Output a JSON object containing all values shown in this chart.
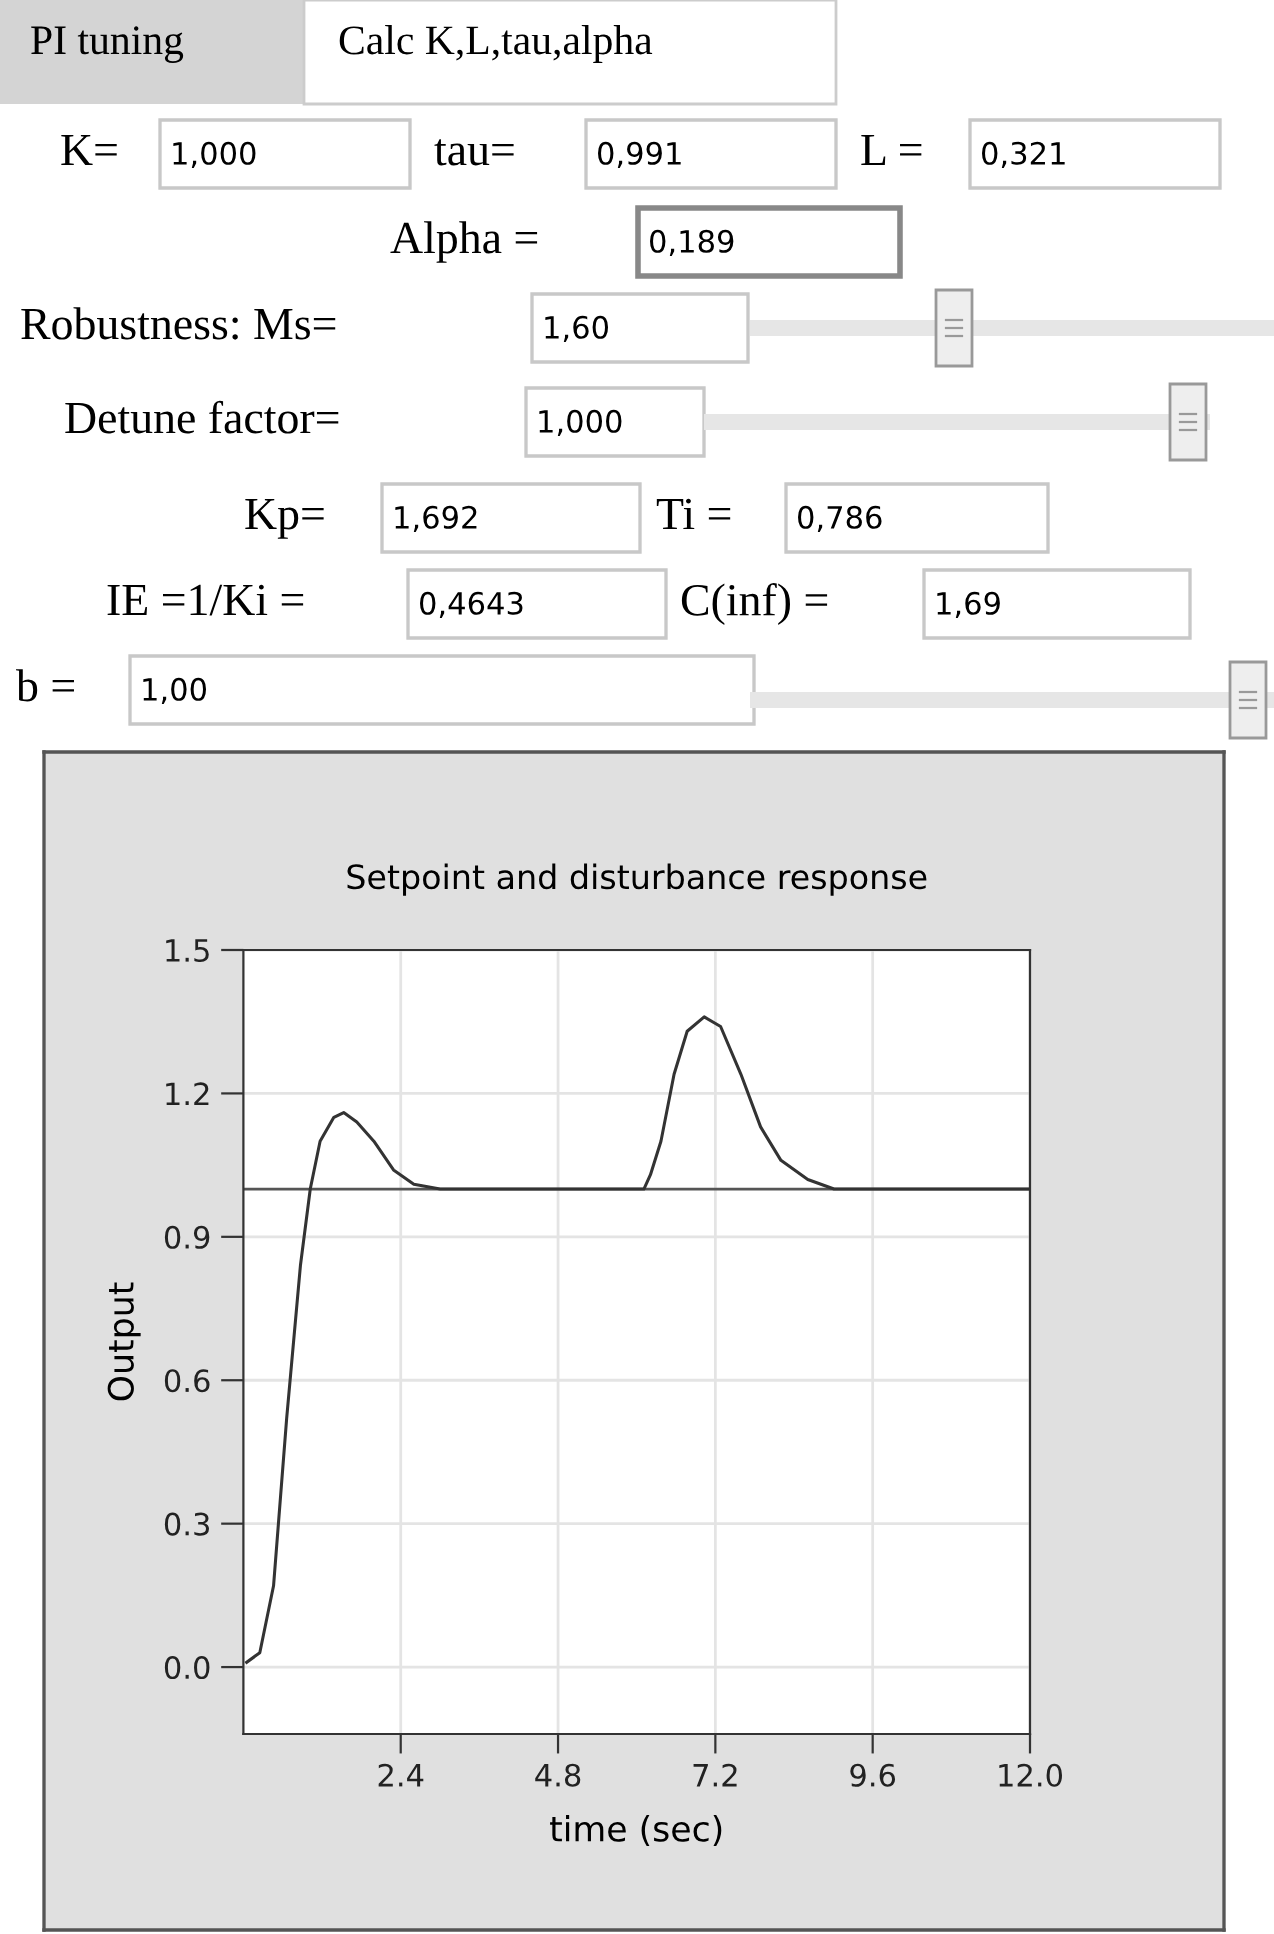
{
  "chart_data": [
    {
      "type": "other",
      "annotations": [
        "PI tuning",
        "Calc K,L,tau,alpha",
        "K=",
        "1,000",
        "tau=",
        "0,991",
        "L =",
        "0,321",
        "Alpha =",
        "0,189",
        "Robustness: Ms=",
        "1,60",
        "Detune factor=",
        "1,000",
        "Kp=",
        "1,692",
        "Ti =",
        "0,786",
        "IE =1/Ki =",
        "0,4643",
        "C(inf) =",
        "1,69",
        "b =",
        "1,00"
      ]
    },
    {
      "type": "line",
      "title": "Setpoint and disturbance response",
      "xlabel": "time (sec)",
      "ylabel": "Output",
      "x": [
        0.05,
        0.25,
        0.46,
        0.66,
        0.87,
        1.02,
        1.17,
        1.38,
        1.53,
        1.73,
        1.99,
        2.29,
        2.6,
        3.0,
        3.51,
        4.02,
        5.04,
        6.11,
        6.21,
        6.37,
        6.57,
        6.77,
        7.03,
        7.28,
        7.59,
        7.89,
        8.2,
        8.61,
        9.01,
        10.14,
        12.0
      ],
      "series": [
        {
          "color": "#333333",
          "values": [
            0.01,
            0.03,
            0.17,
            0.52,
            0.84,
            1.0,
            1.1,
            1.15,
            1.16,
            1.14,
            1.1,
            1.04,
            1.01,
            1.0,
            1.0,
            1.0,
            1.0,
            1.0,
            1.03,
            1.1,
            1.24,
            1.33,
            1.36,
            1.34,
            1.24,
            1.13,
            1.06,
            1.02,
            1.0,
            1.0,
            1.0
          ]
        }
      ],
      "ref_lines": [
        {
          "axis": "y",
          "value": 1.0,
          "color": "#555555"
        }
      ],
      "xlim": [
        0,
        12
      ],
      "ylim": [
        -0.14,
        1.5
      ],
      "xticks": [
        2.4,
        4.8,
        7.2,
        9.6,
        {
          "value": 12,
          "label": "12.0"
        }
      ],
      "yticks": [
        {
          "value": 0,
          "label": "0.0"
        },
        0.3,
        0.6,
        0.9,
        1.2,
        1.5
      ],
      "grid": true,
      "legend": false,
      "marker": "none",
      "line_style": "solid"
    }
  ]
}
